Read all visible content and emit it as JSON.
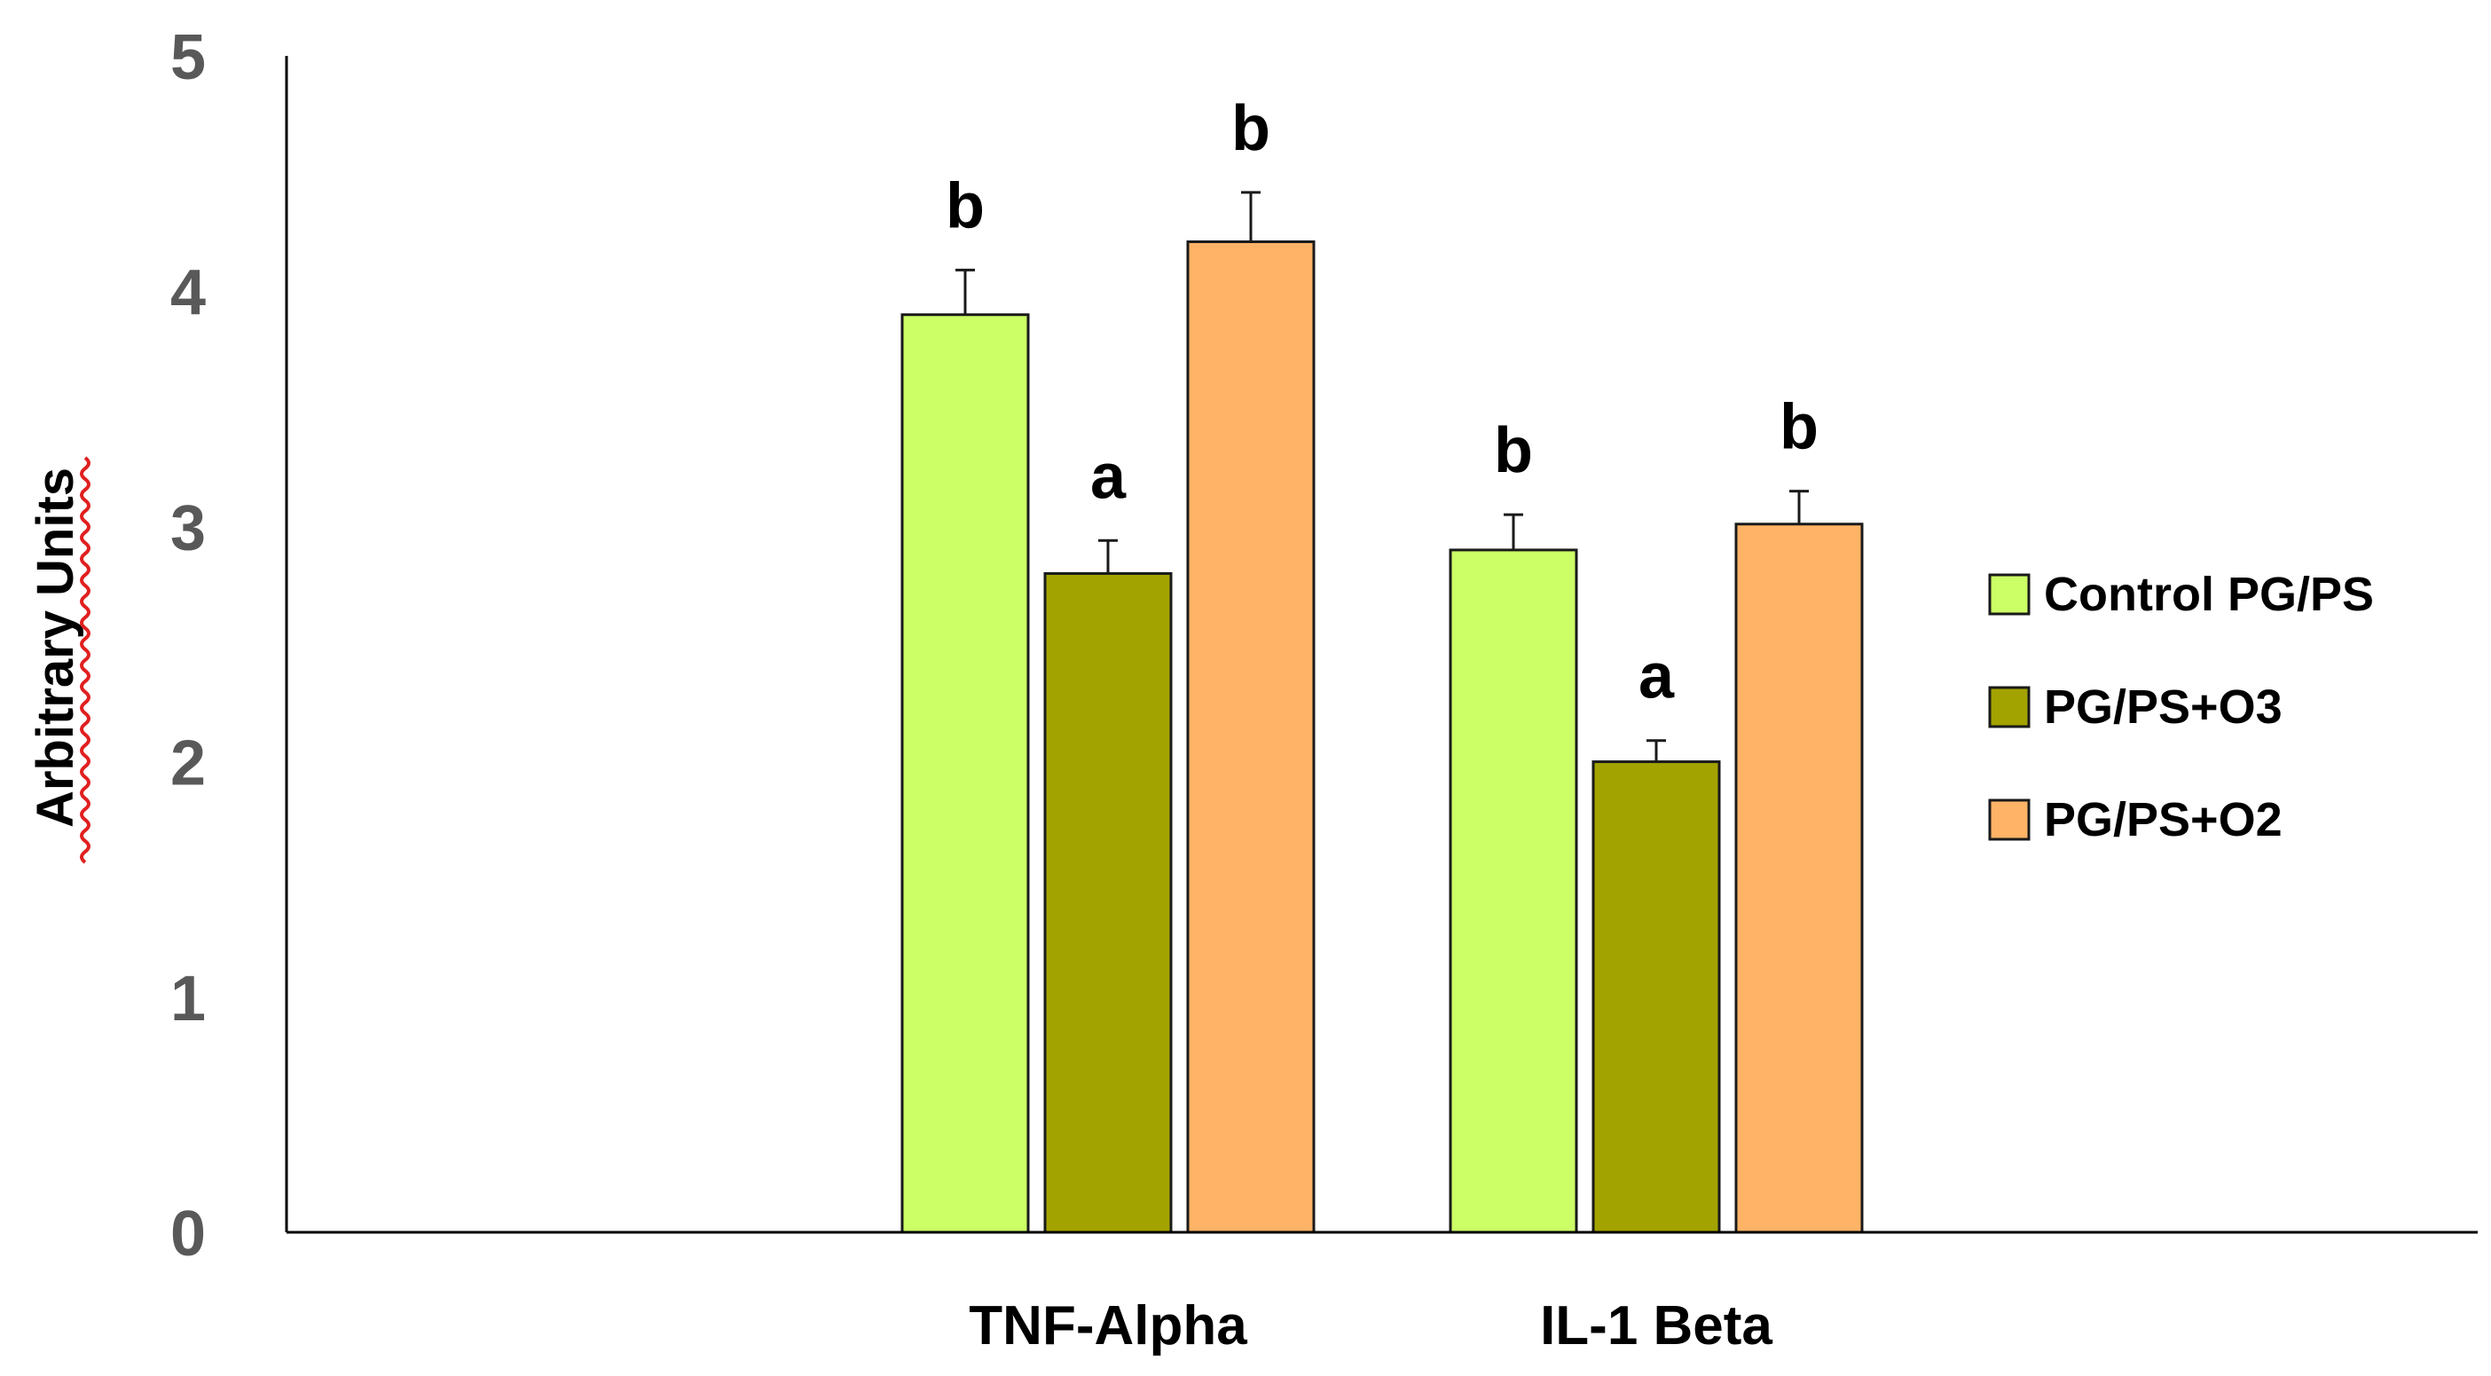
{
  "chart_data": {
    "type": "bar",
    "title": "",
    "xlabel": "",
    "ylabel": "Arbitrary Units",
    "ylim": [
      0,
      5
    ],
    "yticks": [
      "0",
      "1",
      "2",
      "3",
      "4",
      "5"
    ],
    "categories": [
      "TNF-Alpha",
      "IL-1 Beta"
    ],
    "series": [
      {
        "name": "Control PG/PS",
        "color": "#ccff66",
        "values": [
          3.9,
          2.9
        ],
        "errors": [
          0.19,
          0.15
        ],
        "labels": [
          "b",
          "b"
        ]
      },
      {
        "name": "PG/PS+O3",
        "color": "#a3a300",
        "values": [
          2.8,
          2.0
        ],
        "errors": [
          0.14,
          0.09
        ],
        "labels": [
          "a",
          "a"
        ]
      },
      {
        "name": "PG/PS+O2",
        "color": "#ffb366",
        "values": [
          4.21,
          3.01
        ],
        "errors": [
          0.21,
          0.14
        ],
        "labels": [
          "b",
          "b"
        ]
      }
    ],
    "legend_position": "right",
    "grid": false
  }
}
